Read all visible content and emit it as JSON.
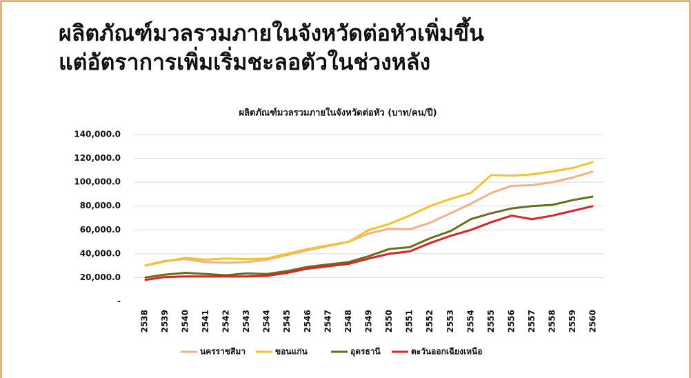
{
  "header": {
    "title_lines": [
      "ผลิตภัณฑ์มวลรวมภายในจังหวัดต่อหัวเพิ่มขึ้น",
      "แต่อัตราการเพิ่มเริ่มชะลอตัวในช่วงหลัง"
    ]
  },
  "chart_data": {
    "type": "line",
    "title": "ผลิตภัณฑ์มวลรวมภายในจังหวัดต่อหัว (บาท/คน/ปี)",
    "categories": [
      "2538",
      "2539",
      "2540",
      "2541",
      "2542",
      "2543",
      "2544",
      "2545",
      "2546",
      "2547",
      "2548",
      "2549",
      "2550",
      "2551",
      "2552",
      "2553",
      "2554",
      "2555",
      "2556",
      "2557",
      "2558",
      "2559",
      "2560"
    ],
    "series": [
      {
        "name": "นครราชสีมา",
        "color": "#f4b183",
        "values": [
          30000,
          34000,
          35500,
          33000,
          32500,
          33000,
          35000,
          39000,
          43000,
          46500,
          50000,
          57000,
          61000,
          60500,
          66000,
          74000,
          82000,
          91000,
          97000,
          97500,
          100000,
          104000,
          109000
        ]
      },
      {
        "name": "ขอนแก่น",
        "color": "#f2c230",
        "values": [
          30000,
          33500,
          36500,
          35000,
          36000,
          35500,
          36000,
          40000,
          44000,
          47000,
          50000,
          60000,
          65000,
          72000,
          80000,
          86000,
          91000,
          106000,
          105500,
          106500,
          109000,
          112000,
          117000
        ]
      },
      {
        "name": "อุดรธานี",
        "color": "#6b6b1a",
        "values": [
          20000,
          22500,
          24000,
          23000,
          22000,
          23500,
          23000,
          25500,
          29000,
          31000,
          33000,
          38000,
          44000,
          45500,
          53000,
          59000,
          69000,
          74000,
          78000,
          80000,
          81000,
          85000,
          88000
        ]
      },
      {
        "name": "ตะวันออกเฉียงเหนือ",
        "color": "#d9252a",
        "values": [
          18000,
          20500,
          21000,
          21000,
          21000,
          21000,
          21500,
          24000,
          27500,
          29500,
          31500,
          36000,
          40000,
          42000,
          49000,
          55000,
          60000,
          66500,
          72000,
          69000,
          72000,
          76000,
          80000
        ]
      }
    ],
    "ylim": [
      0,
      140000
    ],
    "yticks": [
      {
        "value": 0,
        "label": "-"
      },
      {
        "value": 20000,
        "label": "20,000.0"
      },
      {
        "value": 40000,
        "label": "40,000.0"
      },
      {
        "value": 60000,
        "label": "60,000.0"
      },
      {
        "value": 80000,
        "label": "80,000.0"
      },
      {
        "value": 100000,
        "label": "100,000.0"
      },
      {
        "value": 120000,
        "label": "120,000.0"
      },
      {
        "value": 140000,
        "label": "140,000.0"
      }
    ],
    "grid": true,
    "legend": "bottom"
  }
}
